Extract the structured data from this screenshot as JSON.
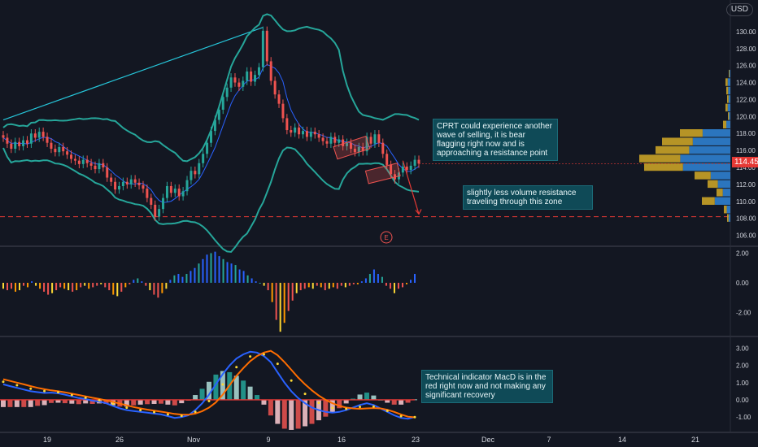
{
  "currency": "USD",
  "last_price": "114.45",
  "earnings_marker": "E",
  "annotations": {
    "note1": "CPRT could experience another wave of selling, it is bear flagging right now and is approaching a resistance point",
    "note2": "slightly less volume resistance traveling through this zone",
    "note3": "Technical indicator MacD is in the red right now and not making any significant recovery"
  },
  "colors": {
    "up": "#26a69a",
    "down": "#ef5350",
    "band": "#26a69a",
    "ma": "#2962ff",
    "annotation": "#0f4a57",
    "vp_up": "#2f7fcf",
    "vp_down": "#c9a227",
    "support": "#e53935"
  },
  "chart_data": [
    {
      "type": "candlestick",
      "x_ticks": [
        "19",
        "26",
        "Nov",
        "9",
        "16",
        "23",
        "Dec",
        "7",
        "14",
        "21"
      ],
      "y_ticks": [
        "130.00",
        "128.00",
        "126.00",
        "124.00",
        "122.00",
        "120.00",
        "118.00",
        "116.00",
        "114.00",
        "112.00",
        "110.00",
        "108.00",
        "106.00"
      ],
      "ylim": [
        105,
        132
      ],
      "close": [
        117.5,
        116.8,
        116.2,
        117.0,
        116.5,
        117.2,
        116.8,
        118.0,
        117.5,
        118.2,
        117.6,
        116.9,
        116.2,
        115.8,
        116.4,
        115.9,
        115.5,
        115.0,
        114.8,
        114.4,
        114.9,
        114.5,
        114.2,
        113.8,
        114.5,
        114.0,
        112.8,
        112.3,
        111.4,
        111.8,
        112.3,
        112.0,
        112.6,
        112.2,
        111.9,
        111.5,
        110.4,
        109.6,
        108.2,
        109.1,
        110.4,
        111.8,
        111.0,
        111.5,
        110.6,
        111.2,
        112.5,
        113.6,
        113.2,
        114.5,
        115.6,
        116.9,
        118.3,
        119.6,
        120.8,
        122.3,
        123.4,
        124.6,
        124.0,
        123.5,
        124.2,
        125.3,
        124.1,
        124.9,
        125.8,
        130.1,
        126.5,
        124.2,
        122.6,
        121.5,
        119.8,
        118.4,
        118.1,
        118.7,
        117.9,
        118.3,
        117.6,
        118.2,
        117.9,
        117.5,
        117.1,
        116.8,
        117.6,
        116.9,
        117.3,
        116.5,
        116.9,
        116.2,
        115.8,
        116.4,
        115.9,
        117.6,
        116.8,
        117.9,
        116.9,
        115.6,
        114.3,
        113.2,
        112.6,
        113.4,
        114.1,
        113.7,
        114.2,
        114.9,
        114.45
      ],
      "resistance_line": {
        "from": [
          0,
          119.6
        ],
        "to": [
          65,
          130.5
        ]
      },
      "support_level": 108.2,
      "volume_profile_levels": [
        125,
        124,
        123,
        122,
        121,
        120,
        119,
        118,
        117,
        116,
        115,
        114,
        113,
        112,
        111,
        110,
        109,
        108
      ],
      "volume_profile_up": [
        2,
        6,
        5,
        4,
        6,
        3,
        9,
        62,
        84,
        92,
        112,
        106,
        44,
        28,
        17,
        35,
        8,
        4
      ],
      "volume_profile_down": [
        2,
        6,
        5,
        4,
        6,
        3,
        9,
        62,
        84,
        92,
        112,
        106,
        44,
        28,
        17,
        35,
        8,
        4
      ]
    },
    {
      "type": "histogram",
      "name": "",
      "y_ticks": [
        "2.00",
        "0.00",
        "-2.00"
      ],
      "ylim": [
        -3.4,
        2.3
      ],
      "values": [
        -0.4,
        -0.5,
        -0.4,
        -0.6,
        -0.5,
        -0.2,
        -0.3,
        0.1,
        -0.2,
        -0.4,
        -0.6,
        -0.8,
        -0.7,
        -0.5,
        -0.3,
        -0.4,
        -0.5,
        -0.6,
        -0.5,
        -0.3,
        -0.2,
        -0.4,
        -0.3,
        -0.2,
        -0.1,
        -0.3,
        -0.5,
        -0.8,
        -0.9,
        -0.6,
        -0.3,
        -0.1,
        0.2,
        0.3,
        0.1,
        -0.2,
        -0.5,
        -0.8,
        -1.0,
        -0.7,
        -0.4,
        0.2,
        0.5,
        0.6,
        0.4,
        0.6,
        0.8,
        1.0,
        1.3,
        1.6,
        1.9,
        2.0,
        2.1,
        1.8,
        1.6,
        1.4,
        1.3,
        1.2,
        0.9,
        0.8,
        0.5,
        0.3,
        0.1,
        0.0,
        -0.2,
        -0.5,
        -1.3,
        -2.5,
        -3.3,
        -2.7,
        -1.9,
        -1.2,
        -0.7,
        -0.5,
        -0.4,
        -0.3,
        -0.4,
        -0.2,
        -0.3,
        -0.5,
        -0.4,
        -0.3,
        -0.4,
        -0.2,
        -0.3,
        -0.2,
        -0.1,
        -0.1,
        0.1,
        0.3,
        0.6,
        0.9,
        0.6,
        0.4,
        -0.2,
        -0.4,
        -0.7,
        -0.4,
        -0.3,
        -0.1,
        0.2,
        0.6
      ]
    },
    {
      "type": "macd",
      "y_ticks": [
        "3.00",
        "2.00",
        "1.00",
        "0.00",
        "-1.00"
      ],
      "ylim": [
        -1.8,
        3.5
      ],
      "macd": [
        0.9,
        0.8,
        0.7,
        0.6,
        0.5,
        0.45,
        0.4,
        0.42,
        0.38,
        0.3,
        0.2,
        0.1,
        0.05,
        -0.05,
        -0.1,
        -0.2,
        -0.35,
        -0.5,
        -0.6,
        -0.65,
        -0.7,
        -0.75,
        -0.8,
        -0.85,
        -0.95,
        -1.05,
        -1.0,
        -0.9,
        -0.6,
        -0.2,
        0.3,
        0.9,
        1.5,
        2.0,
        2.4,
        2.65,
        2.8,
        2.75,
        2.55,
        2.2,
        1.6,
        1.0,
        0.5,
        0.1,
        -0.2,
        -0.45,
        -0.6,
        -0.7,
        -0.75,
        -0.7,
        -0.6,
        -0.45,
        -0.3,
        -0.2,
        -0.3,
        -0.5,
        -0.7,
        -0.9,
        -1.05,
        -1.1,
        -1.0
      ],
      "signal": [
        1.2,
        1.1,
        1.0,
        0.9,
        0.8,
        0.7,
        0.62,
        0.55,
        0.5,
        0.44,
        0.36,
        0.28,
        0.2,
        0.12,
        0.05,
        -0.03,
        -0.12,
        -0.22,
        -0.32,
        -0.42,
        -0.5,
        -0.57,
        -0.63,
        -0.69,
        -0.75,
        -0.82,
        -0.86,
        -0.87,
        -0.8,
        -0.66,
        -0.45,
        -0.15,
        0.3,
        0.85,
        1.4,
        1.85,
        2.25,
        2.55,
        2.75,
        2.85,
        2.6,
        2.2,
        1.75,
        1.3,
        0.9,
        0.55,
        0.25,
        0.0,
        -0.2,
        -0.35,
        -0.45,
        -0.5,
        -0.52,
        -0.5,
        -0.48,
        -0.5,
        -0.58,
        -0.7,
        -0.85,
        -0.98,
        -1.02
      ]
    }
  ]
}
